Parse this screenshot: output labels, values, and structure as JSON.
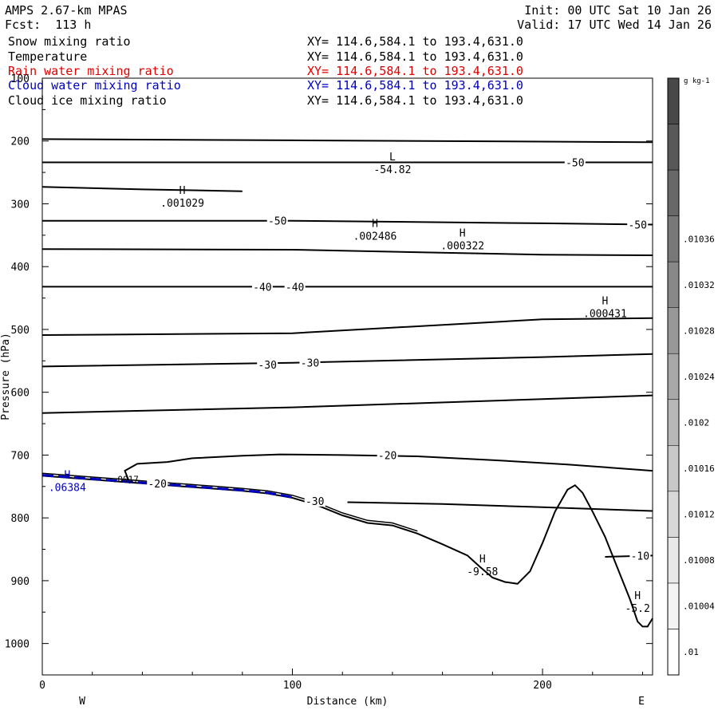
{
  "header": {
    "model": "AMPS 2.67-km MPAS",
    "init": "Init: 00 UTC Sat 10 Jan 26",
    "fcst": "Fcst:  113 h",
    "valid": "Valid: 17 UTC Wed 14 Jan 26"
  },
  "fields": [
    {
      "name": "Snow mixing ratio",
      "xy": "XY= 114.6,584.1 to 193.4,631.0",
      "color": "#000000"
    },
    {
      "name": "Temperature",
      "xy": "XY= 114.6,584.1 to 193.4,631.0",
      "color": "#000000"
    },
    {
      "name": "Rain water mixing ratio",
      "xy": "XY= 114.6,584.1 to 193.4,631.0",
      "color": "#e00000"
    },
    {
      "name": "Cloud water mixing ratio",
      "xy": "XY= 114.6,584.1 to 193.4,631.0",
      "color": "#0000c0"
    },
    {
      "name": "Cloud ice mixing ratio",
      "xy": "XY= 114.6,584.1 to 193.4,631.0",
      "color": "#000000"
    }
  ],
  "chart_data": {
    "type": "contour cross-section",
    "xlabel": "Distance (km)",
    "ylabel": "Pressure (hPa)",
    "xlim": [
      0,
      244
    ],
    "ylim": [
      1050,
      100
    ],
    "x_ticks": [
      "0",
      "100",
      "200"
    ],
    "x_tick_values": [
      0,
      100,
      200
    ],
    "y_ticks": [
      "100",
      "200",
      "300",
      "400",
      "500",
      "600",
      "700",
      "800",
      "900",
      "1000"
    ],
    "y_tick_values": [
      100,
      200,
      300,
      400,
      500,
      600,
      700,
      800,
      900,
      1000
    ],
    "west_label": "W",
    "east_label": "E",
    "colorbar": {
      "units": "g kg-1",
      "labels": [
        ".01",
        ".01004",
        ".01008",
        ".01012",
        ".01016",
        ".0102",
        ".01024",
        ".01028",
        ".01032",
        ".01036"
      ],
      "colors": [
        "#ffffff",
        "#f4f4f4",
        "#e8e8e8",
        "#d8d8d8",
        "#c8c8c8",
        "#b8b8b8",
        "#a8a8a8",
        "#989898",
        "#888888",
        "#787878",
        "#686868",
        "#585858",
        "#484848"
      ]
    },
    "temperature_contours": [
      {
        "x": [
          0,
          100,
          200,
          244
        ],
        "p": [
          197,
          199,
          201,
          202
        ]
      },
      {
        "x": [
          0,
          100,
          200,
          244
        ],
        "p": [
          234,
          234,
          234,
          234
        ]
      },
      {
        "x": [
          0,
          40,
          80
        ],
        "p": [
          273,
          277,
          280
        ]
      },
      {
        "x": [
          0,
          100,
          200,
          244
        ],
        "p": [
          327,
          327,
          331,
          333
        ]
      },
      {
        "x": [
          0,
          100,
          200,
          244
        ],
        "p": [
          372,
          373,
          381,
          382
        ]
      },
      {
        "x": [
          0,
          100,
          200,
          244
        ],
        "p": [
          432,
          432,
          432,
          432
        ]
      },
      {
        "x": [
          0,
          100,
          200,
          244
        ],
        "p": [
          509,
          506,
          484,
          482
        ]
      },
      {
        "x": [
          0,
          100,
          200,
          244
        ],
        "p": [
          559,
          553,
          544,
          539
        ]
      },
      {
        "x": [
          0,
          100,
          200,
          244
        ],
        "p": [
          633,
          624,
          611,
          605
        ]
      },
      {
        "x": [
          35,
          33,
          38,
          50,
          60,
          80,
          95,
          120,
          150,
          180,
          210,
          244
        ],
        "p": [
          745,
          725,
          714,
          711,
          705,
          701,
          699,
          700,
          702,
          708,
          715,
          725
        ]
      },
      {
        "x": [
          122,
          135,
          160,
          200,
          244
        ],
        "p": [
          775,
          776,
          778,
          783,
          789
        ]
      },
      {
        "x": [
          225,
          244
        ],
        "p": [
          862,
          860
        ]
      }
    ],
    "terrain": {
      "x": [
        0,
        10,
        20,
        30,
        40,
        50,
        60,
        70,
        80,
        90,
        100,
        110,
        120,
        130,
        140,
        150,
        160,
        170,
        175,
        180,
        185,
        190,
        195,
        200,
        205,
        210,
        213,
        216,
        220,
        225,
        230,
        235,
        238,
        240,
        242,
        244
      ],
      "p": [
        733,
        736,
        739,
        742,
        745,
        748,
        751,
        754,
        757,
        761,
        768,
        780,
        796,
        808,
        812,
        825,
        842,
        860,
        878,
        895,
        902,
        905,
        885,
        840,
        790,
        755,
        748,
        760,
        790,
        830,
        880,
        930,
        965,
        973,
        973,
        960
      ]
    },
    "contour_labels": [
      {
        "text": "-50",
        "x": 213,
        "p": 234
      },
      {
        "text": "-50",
        "x": 94,
        "p": 327
      },
      {
        "text": "-50",
        "x": 238,
        "p": 333
      },
      {
        "text": "-40",
        "x": 88,
        "p": 432
      },
      {
        "text": "-40",
        "x": 101,
        "p": 432
      },
      {
        "text": "-30",
        "x": 90,
        "p": 556
      },
      {
        "text": "-30",
        "x": 107,
        "p": 553
      },
      {
        "text": "-20",
        "x": 138,
        "p": 700
      },
      {
        "text": "-20",
        "x": 46,
        "p": 745
      },
      {
        "text": "-30",
        "x": 109,
        "p": 773
      },
      {
        "text": "-10",
        "x": 239,
        "p": 860
      }
    ],
    "extrema_labels": [
      {
        "mark": "H",
        "value": ".001029",
        "x": 56,
        "p": 293,
        "color": "#000000"
      },
      {
        "mark": "L",
        "value": "-54.82",
        "x": 140,
        "p": 240,
        "color": "#000000"
      },
      {
        "mark": "H",
        "value": ".002486",
        "x": 133,
        "p": 346,
        "color": "#000000"
      },
      {
        "mark": "H",
        "value": ".000322",
        "x": 168,
        "p": 361,
        "color": "#000000"
      },
      {
        "mark": "H",
        "value": ".000431",
        "x": 225,
        "p": 469,
        "color": "#000000"
      },
      {
        "mark": "H",
        "value": ".06384",
        "x": 10,
        "p": 746,
        "color": "#0000c0"
      },
      {
        "mark": "H",
        "value": "-9.58",
        "x": 176,
        "p": 880,
        "color": "#000000"
      },
      {
        "mark": "H",
        "value": "-5.2",
        "x": 238,
        "p": 938,
        "color": "#000000"
      }
    ],
    "small_labels": [
      {
        "text": ".0017",
        "x": 28,
        "p": 738
      }
    ]
  }
}
